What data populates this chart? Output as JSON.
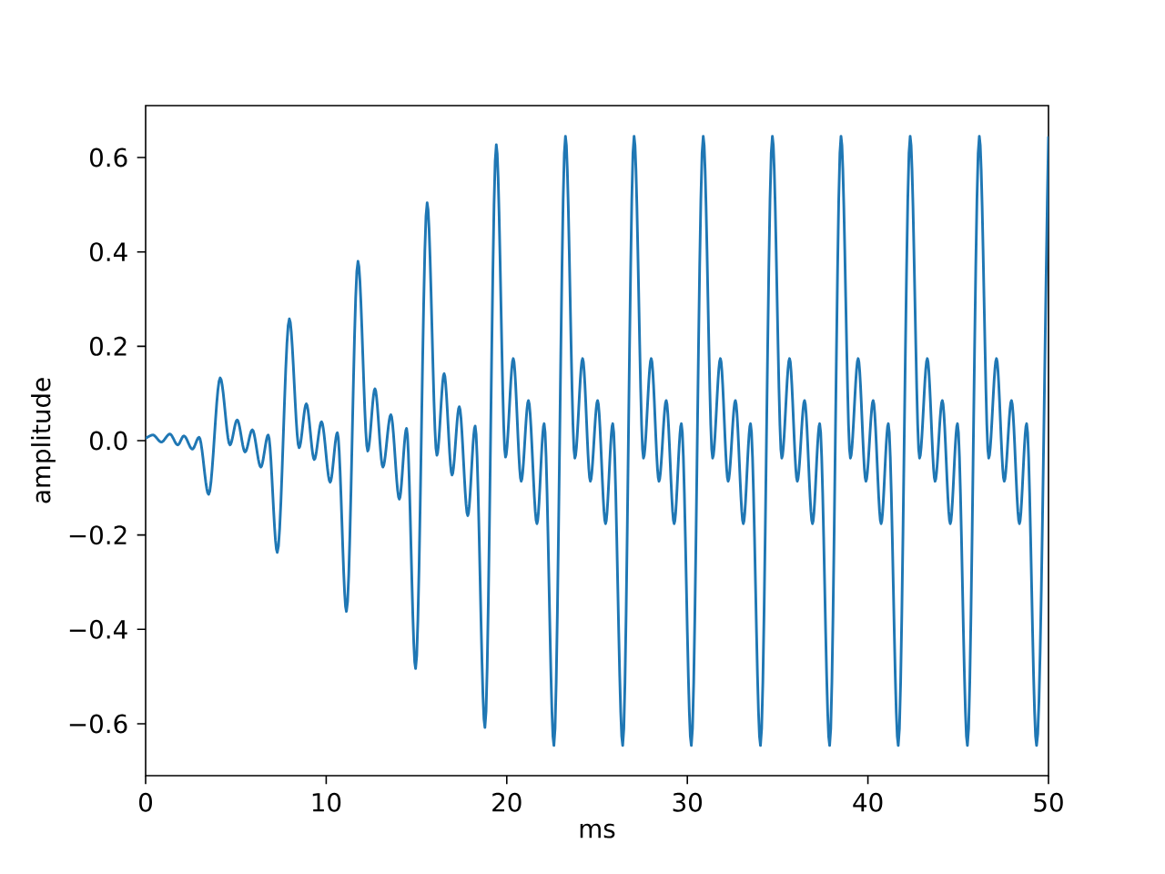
{
  "chart_data": {
    "type": "line",
    "xlabel": "ms",
    "ylabel": "amplitude",
    "color": "#1f77b4",
    "x": [
      0,
      0.4,
      0.87,
      1.34,
      1.78,
      2.12,
      2.59,
      2.96,
      3.49,
      4.13,
      4.67,
      5.07,
      5.51,
      5.91,
      6.38,
      6.79,
      7.29,
      7.96,
      8.5,
      8.9,
      9.34,
      9.74,
      10.22,
      10.62,
      11.12,
      11.76,
      12.3,
      12.7,
      13.14,
      13.58,
      14.05,
      14.45,
      14.95,
      15.59,
      16.13,
      16.53,
      16.97,
      17.37,
      17.84,
      18.25,
      18.79,
      19.42,
      19.93,
      20.36,
      20.8,
      21.2,
      21.67,
      22.07,
      22.61,
      23.25,
      23.77,
      24.2,
      24.63,
      25.03,
      25.47,
      25.87,
      26.42,
      27.05,
      27.57,
      28.0,
      28.43,
      28.83,
      29.27,
      29.67,
      30.22,
      30.88,
      31.4,
      31.83,
      32.26,
      32.66,
      33.1,
      33.5,
      34.05,
      34.71,
      35.23,
      35.66,
      36.09,
      36.49,
      36.93,
      37.33,
      37.88,
      38.51,
      39.03,
      39.46,
      39.89,
      40.29,
      40.73,
      41.13,
      41.68,
      42.34,
      42.86,
      43.29,
      43.72,
      44.12,
      44.56,
      44.96,
      45.51,
      46.17,
      46.69,
      47.12,
      47.55,
      47.95,
      48.39,
      48.79,
      49.34,
      50
    ],
    "values": [
      0.005,
      0.012,
      -0.003,
      0.014,
      -0.009,
      0.01,
      -0.018,
      0.007,
      -0.114,
      0.133,
      -0.009,
      0.044,
      -0.024,
      0.023,
      -0.056,
      0.012,
      -0.237,
      0.258,
      -0.015,
      0.078,
      -0.04,
      0.04,
      -0.088,
      0.017,
      -0.362,
      0.38,
      -0.022,
      0.11,
      -0.056,
      0.055,
      -0.124,
      0.026,
      -0.483,
      0.504,
      -0.031,
      0.142,
      -0.073,
      0.072,
      -0.159,
      0.031,
      -0.608,
      0.627,
      -0.035,
      0.174,
      -0.086,
      0.085,
      -0.176,
      0.036,
      -0.646,
      0.645,
      -0.037,
      0.174,
      -0.086,
      0.085,
      -0.176,
      0.036,
      -0.646,
      0.645,
      -0.037,
      0.174,
      -0.086,
      0.085,
      -0.176,
      0.036,
      -0.646,
      0.645,
      -0.037,
      0.174,
      -0.086,
      0.085,
      -0.176,
      0.036,
      -0.646,
      0.645,
      -0.037,
      0.174,
      -0.086,
      0.085,
      -0.176,
      0.036,
      -0.646,
      0.645,
      -0.037,
      0.174,
      -0.086,
      0.085,
      -0.176,
      0.036,
      -0.646,
      0.645,
      -0.037,
      0.174,
      -0.086,
      0.085,
      -0.176,
      0.036,
      -0.646,
      0.645,
      -0.037,
      0.174,
      -0.086,
      0.085,
      -0.176,
      0.036,
      -0.646,
      0.645
    ],
    "xlim": [
      0,
      50
    ],
    "xticks": [
      0,
      10,
      20,
      30,
      40,
      50
    ],
    "ylim": [
      -0.71,
      0.71
    ],
    "yticks": [
      {
        "value": -0.6,
        "label": "−0.6"
      },
      {
        "value": -0.4,
        "label": "−0.4"
      },
      {
        "value": -0.2,
        "label": "−0.2"
      },
      {
        "value": 0,
        "label": "0.0"
      },
      {
        "value": 0.2,
        "label": "0.2"
      },
      {
        "value": 0.4,
        "label": "0.4"
      },
      {
        "value": 0.6,
        "label": "0.6"
      }
    ]
  }
}
